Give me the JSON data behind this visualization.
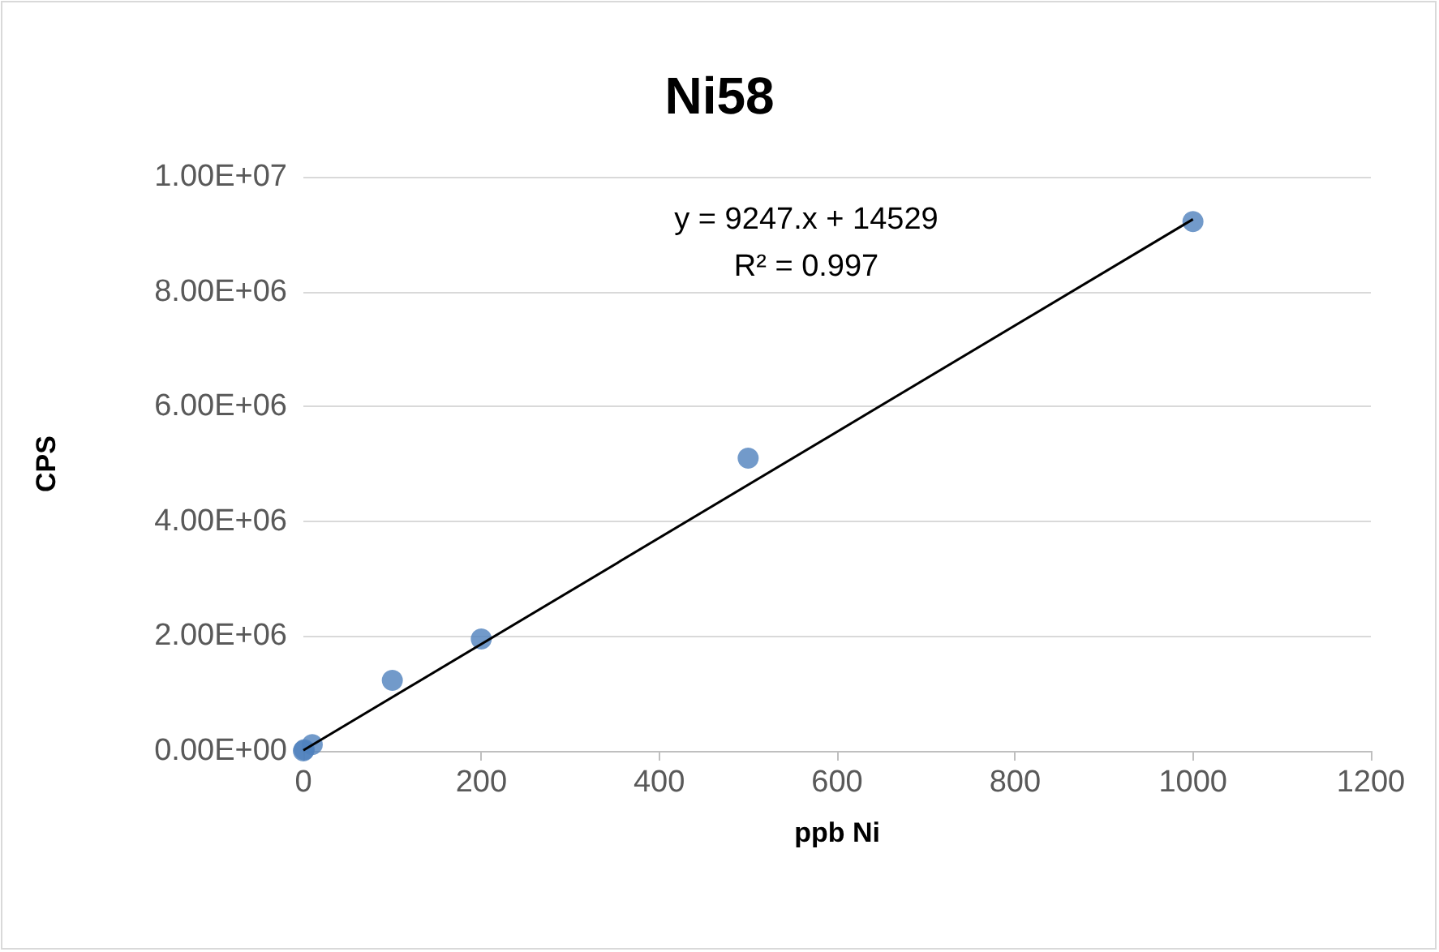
{
  "chart_data": {
    "type": "scatter",
    "title": "Ni58",
    "xlabel": "ppb Ni",
    "ylabel": "CPS",
    "series": [
      {
        "color": "#4f81bd",
        "x": [
          0,
          1,
          10,
          100,
          200,
          500,
          1000
        ],
        "values": [
          0,
          20000,
          110000,
          1230000,
          1950000,
          5100000,
          9220000
        ]
      },
      {
        "type": "line",
        "color": "#000000",
        "x": [
          0,
          1000
        ],
        "values": [
          10000,
          9260000
        ],
        "marker": "none"
      }
    ],
    "annotations": [
      "y = 9247.x + 14529",
      "R² = 0.997"
    ],
    "xlim": [
      0,
      1200
    ],
    "xticks": [
      0,
      200,
      400,
      600,
      800,
      1000,
      1200
    ],
    "ylim": [
      0,
      10000000
    ],
    "yticks": [
      {
        "value": 0,
        "label": "0.00E+00"
      },
      {
        "value": 2000000,
        "label": "2.00E+06"
      },
      {
        "value": 4000000,
        "label": "4.00E+06"
      },
      {
        "value": 6000000,
        "label": "6.00E+06"
      },
      {
        "value": 8000000,
        "label": "8.00E+06"
      },
      {
        "value": 10000000,
        "label": "1.00E+07"
      }
    ],
    "grid": "y",
    "marker": "circle"
  }
}
